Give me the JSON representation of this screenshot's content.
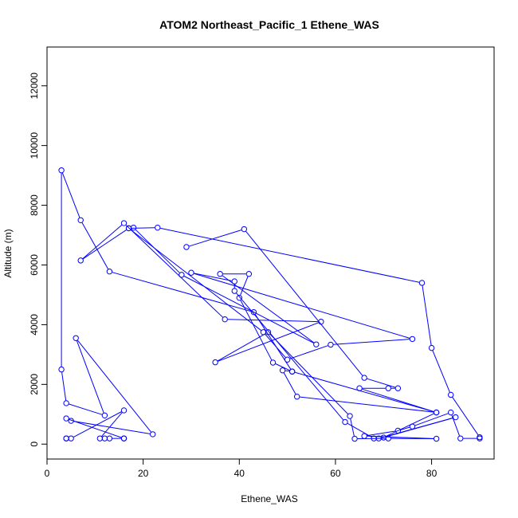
{
  "chart_data": {
    "type": "line",
    "title": "ATOM2 Northeast_Pacific_1 Ethene_WAS",
    "xlabel": "Ethene_WAS",
    "ylabel": "Altitude (m)",
    "xlim": [
      0,
      93
    ],
    "ylim": [
      -500,
      13300
    ],
    "xticks": [
      0,
      20,
      40,
      60,
      80
    ],
    "yticks": [
      0,
      2000,
      4000,
      6000,
      8000,
      10000,
      12000
    ],
    "grid": false,
    "color": "#0000ff",
    "points": [
      {
        "x": 4,
        "y": 190
      },
      {
        "x": 4,
        "y": 190
      },
      {
        "x": 5,
        "y": 190
      },
      {
        "x": 16,
        "y": 1130
      },
      {
        "x": 11,
        "y": 190
      },
      {
        "x": 12,
        "y": 190
      },
      {
        "x": 13,
        "y": 190
      },
      {
        "x": 16,
        "y": 190
      },
      {
        "x": 16,
        "y": 190
      },
      {
        "x": 4,
        "y": 860
      },
      {
        "x": 5,
        "y": 780
      },
      {
        "x": 22,
        "y": 330
      },
      {
        "x": 6,
        "y": 3550
      },
      {
        "x": 12,
        "y": 960
      },
      {
        "x": 4,
        "y": 1370
      },
      {
        "x": 3,
        "y": 2500
      },
      {
        "x": 3,
        "y": 9170
      },
      {
        "x": 7,
        "y": 7500
      },
      {
        "x": 13,
        "y": 5780
      },
      {
        "x": 43,
        "y": 4420
      },
      {
        "x": 51,
        "y": 2430
      },
      {
        "x": 47,
        "y": 2730
      },
      {
        "x": 40,
        "y": 4900
      },
      {
        "x": 42,
        "y": 5700
      },
      {
        "x": 36,
        "y": 5700
      },
      {
        "x": 56,
        "y": 3340
      },
      {
        "x": 28,
        "y": 5670
      },
      {
        "x": 18,
        "y": 7250
      },
      {
        "x": 17,
        "y": 7230
      },
      {
        "x": 7,
        "y": 6150
      },
      {
        "x": 16,
        "y": 7400
      },
      {
        "x": 37,
        "y": 4180
      },
      {
        "x": 57,
        "y": 4100
      },
      {
        "x": 35,
        "y": 2740
      },
      {
        "x": 46,
        "y": 3750
      },
      {
        "x": 63,
        "y": 940
      },
      {
        "x": 64,
        "y": 180
      },
      {
        "x": 71,
        "y": 190
      },
      {
        "x": 81,
        "y": 180
      },
      {
        "x": 66,
        "y": 270
      },
      {
        "x": 73,
        "y": 450
      },
      {
        "x": 76,
        "y": 590
      },
      {
        "x": 84,
        "y": 1060
      },
      {
        "x": 86,
        "y": 190
      },
      {
        "x": 90,
        "y": 190
      },
      {
        "x": 90,
        "y": 230
      },
      {
        "x": 84,
        "y": 1650
      },
      {
        "x": 80,
        "y": 3220
      },
      {
        "x": 78,
        "y": 5400
      },
      {
        "x": 23,
        "y": 7250
      },
      {
        "x": 17,
        "y": 7230
      },
      {
        "x": 45,
        "y": 3750
      },
      {
        "x": 50,
        "y": 2830
      },
      {
        "x": 59,
        "y": 3330
      },
      {
        "x": 76,
        "y": 3520
      },
      {
        "x": 30,
        "y": 5740
      },
      {
        "x": 39,
        "y": 5450
      },
      {
        "x": 39,
        "y": 5130
      },
      {
        "x": 62,
        "y": 740
      },
      {
        "x": 68,
        "y": 190
      },
      {
        "x": 69,
        "y": 190
      },
      {
        "x": 85,
        "y": 900
      },
      {
        "x": 70,
        "y": 220
      },
      {
        "x": 81,
        "y": 1060
      },
      {
        "x": 51,
        "y": 2430
      },
      {
        "x": 49,
        "y": 2470
      },
      {
        "x": 52,
        "y": 1590
      },
      {
        "x": 81,
        "y": 1060
      },
      {
        "x": 65,
        "y": 1870
      },
      {
        "x": 71,
        "y": 1870
      },
      {
        "x": 73,
        "y": 1870
      },
      {
        "x": 66,
        "y": 2220
      },
      {
        "x": 41,
        "y": 7200
      },
      {
        "x": 29,
        "y": 6600
      }
    ]
  }
}
